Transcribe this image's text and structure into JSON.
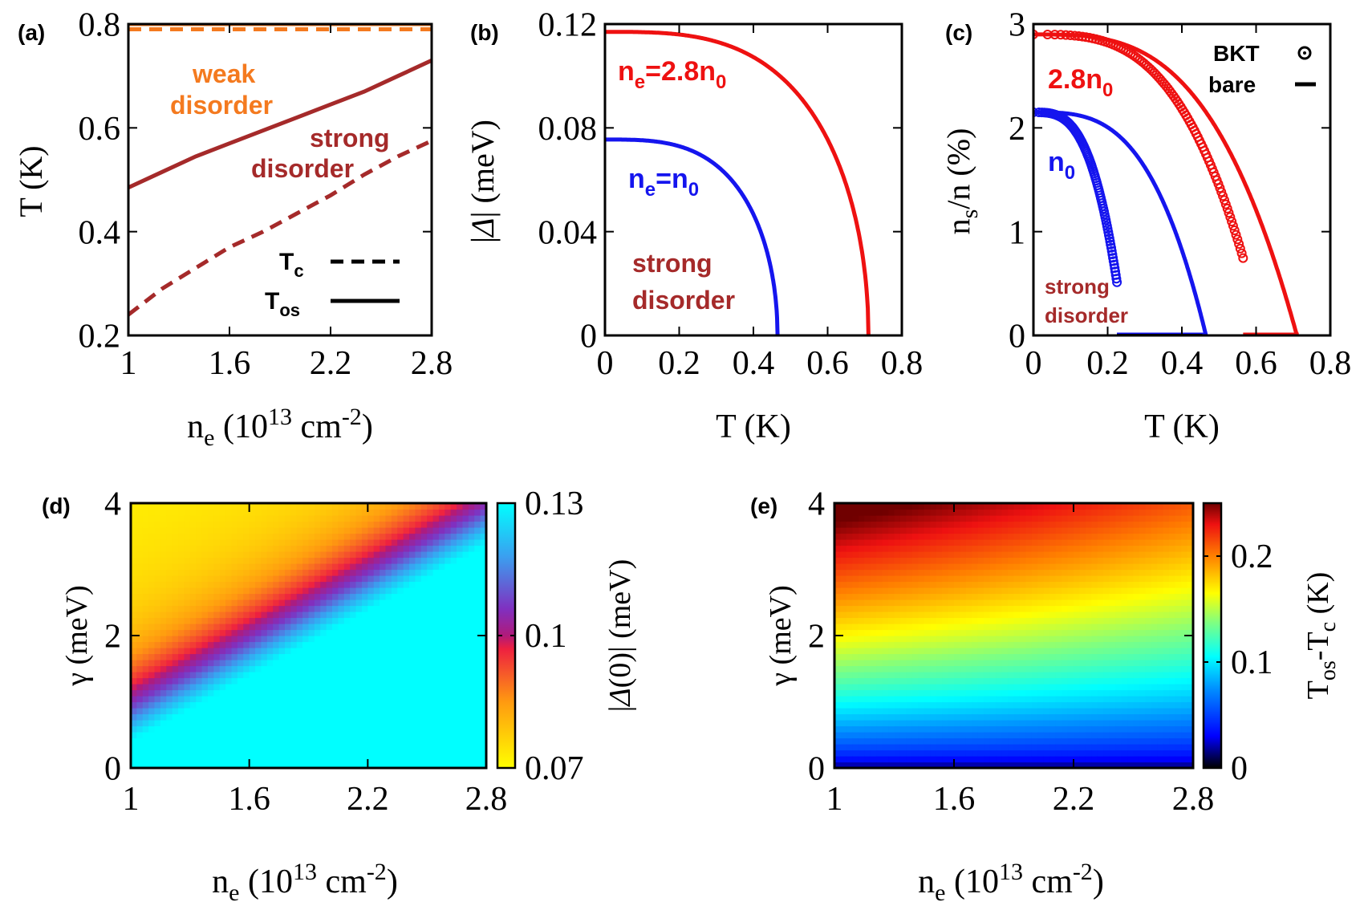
{
  "chart_data": [
    {
      "panel": "a",
      "type": "line",
      "panel_label": "(a)",
      "xlabel_main": "n",
      "xlabel_sub": "e",
      "xlabel_rest": " (10",
      "xlabel_sup": "13",
      "xlabel_unit": " cm",
      "xlabel_unit_sup": "-2",
      "xlabel_close": ")",
      "ylabel": "T (K)",
      "xlim": [
        1,
        2.8
      ],
      "ylim": [
        0.2,
        0.8
      ],
      "xticks": [
        "1",
        "1.6",
        "2.2",
        "2.8"
      ],
      "yticks": [
        "0.2",
        "0.4",
        "0.6",
        "0.8"
      ],
      "annotations": {
        "weak_line1": "weak",
        "weak_line2": "disorder",
        "strong_line1": "strong",
        "strong_line2": "disorder"
      },
      "legend": {
        "tc_main": "T",
        "tc_sub": "c",
        "tos_main": "T",
        "tos_sub": "os"
      },
      "series": [
        {
          "name": "weak Tc",
          "style": "dashed",
          "x": [
            1,
            1.2,
            1.6,
            2.0,
            2.4,
            2.8
          ],
          "y": [
            0.79,
            0.79,
            0.79,
            0.79,
            0.79,
            0.79
          ]
        },
        {
          "name": "weak Tos",
          "style": "solid",
          "x": [
            1,
            1.2,
            1.6,
            2.0,
            2.4,
            2.8
          ],
          "y": [
            0.8,
            0.8,
            0.8,
            0.8,
            0.8,
            0.8
          ]
        },
        {
          "name": "strong Tos",
          "style": "solid",
          "x": [
            1,
            1.2,
            1.4,
            1.6,
            1.8,
            2.0,
            2.2,
            2.4,
            2.6,
            2.8
          ],
          "y": [
            0.485,
            0.515,
            0.545,
            0.57,
            0.595,
            0.62,
            0.645,
            0.67,
            0.7,
            0.73
          ]
        },
        {
          "name": "strong Tc",
          "style": "dashed",
          "x": [
            1,
            1.2,
            1.4,
            1.6,
            1.8,
            2.0,
            2.2,
            2.4,
            2.6,
            2.8
          ],
          "y": [
            0.24,
            0.29,
            0.33,
            0.37,
            0.4,
            0.435,
            0.47,
            0.51,
            0.545,
            0.575
          ]
        }
      ]
    },
    {
      "panel": "b",
      "type": "line",
      "panel_label": "(b)",
      "xlabel": "T (K)",
      "ylabel_left": "|",
      "ylabel_sym": "Δ",
      "ylabel_right": "| (meV)",
      "xlim": [
        0,
        0.8
      ],
      "ylim": [
        0,
        0.12
      ],
      "xticks": [
        "0",
        "0.2",
        "0.4",
        "0.6",
        "0.8"
      ],
      "yticks": [
        "0",
        "0.04",
        "0.08",
        "0.12"
      ],
      "annotations": {
        "red_main": "n",
        "red_sub": "e",
        "red_rest": "=2.8n",
        "red_sub2": "0",
        "blue_main": "n",
        "blue_sub": "e",
        "blue_rest": "=n",
        "blue_sub2": "0",
        "strong_line1": "strong",
        "strong_line2": "disorder"
      },
      "series": [
        {
          "name": "ne=2.8n0",
          "color": "#ee1111",
          "delta0": 0.117,
          "tc": 0.71
        },
        {
          "name": "ne=n0",
          "color": "#1515ee",
          "delta0": 0.0755,
          "tc": 0.465
        }
      ]
    },
    {
      "panel": "c",
      "type": "line",
      "panel_label": "(c)",
      "xlabel": "T (K)",
      "ylabel_main": "n",
      "ylabel_sub": "s",
      "ylabel_rest": "/n (%)",
      "xlim": [
        0,
        0.8
      ],
      "ylim": [
        0,
        3
      ],
      "xticks": [
        "0",
        "0.2",
        "0.4",
        "0.6",
        "0.8"
      ],
      "yticks": [
        "0",
        "1",
        "2",
        "3"
      ],
      "annotations": {
        "red_main": "2.8n",
        "red_sub": "0",
        "blue_main": "n",
        "blue_sub": "0",
        "strong_line1": "strong",
        "strong_line2": "disorder"
      },
      "legend": {
        "bkt": "BKT",
        "bare": "bare"
      },
      "series": [
        {
          "name": "2.8n0 bare",
          "color": "#ee1111",
          "ns0": 2.9,
          "tc": 0.71
        },
        {
          "name": "n0 bare",
          "color": "#1515ee",
          "ns0": 2.15,
          "tc": 0.465
        },
        {
          "name": "2.8n0 BKT",
          "color": "#ee1111",
          "ns0": 2.9,
          "tc": 0.62,
          "t_end": 0.565
        },
        {
          "name": "n0 BKT",
          "color": "#1515ee",
          "ns0": 2.15,
          "tc": 0.245,
          "t_end": 0.225
        }
      ]
    },
    {
      "panel": "d",
      "type": "heatmap",
      "panel_label": "(d)",
      "xlabel_main": "n",
      "xlabel_sub": "e",
      "xlabel_rest": " (10",
      "xlabel_sup": "13",
      "xlabel_unit": " cm",
      "xlabel_unit_sup": "-2",
      "xlabel_close": ")",
      "ylabel": "γ (meV)",
      "xlim": [
        1,
        2.8
      ],
      "ylim": [
        0,
        4
      ],
      "xticks": [
        "1",
        "1.6",
        "2.2",
        "2.8"
      ],
      "yticks": [
        "0",
        "2",
        "4"
      ],
      "colorbar": {
        "label_left": "|",
        "label_sym": "Δ",
        "label_rest": "(0)| (meV)",
        "range": [
          0.07,
          0.13
        ],
        "ticks": [
          "0.07",
          "0.1",
          "0.13"
        ]
      }
    },
    {
      "panel": "e",
      "type": "heatmap",
      "panel_label": "(e)",
      "xlabel_main": "n",
      "xlabel_sub": "e",
      "xlabel_rest": " (10",
      "xlabel_sup": "13",
      "xlabel_unit": " cm",
      "xlabel_unit_sup": "-2",
      "xlabel_close": ")",
      "ylabel": "γ (meV)",
      "xlim": [
        1,
        2.8
      ],
      "ylim": [
        0,
        4
      ],
      "xticks": [
        "1",
        "1.6",
        "2.2",
        "2.8"
      ],
      "yticks": [
        "0",
        "2",
        "4"
      ],
      "colorbar": {
        "label_main": "T",
        "label_sub1": "os",
        "label_mid": "-T",
        "label_sub2": "c",
        "label_rest": " (K)",
        "range": [
          0,
          0.25
        ],
        "ticks": [
          "0",
          "0.1",
          "0.2"
        ]
      }
    }
  ],
  "colors": {
    "orange": "#f47a1f",
    "brown": "#a52a2a",
    "red": "#ee1111",
    "blue": "#1515ee",
    "axis": "#000000"
  }
}
